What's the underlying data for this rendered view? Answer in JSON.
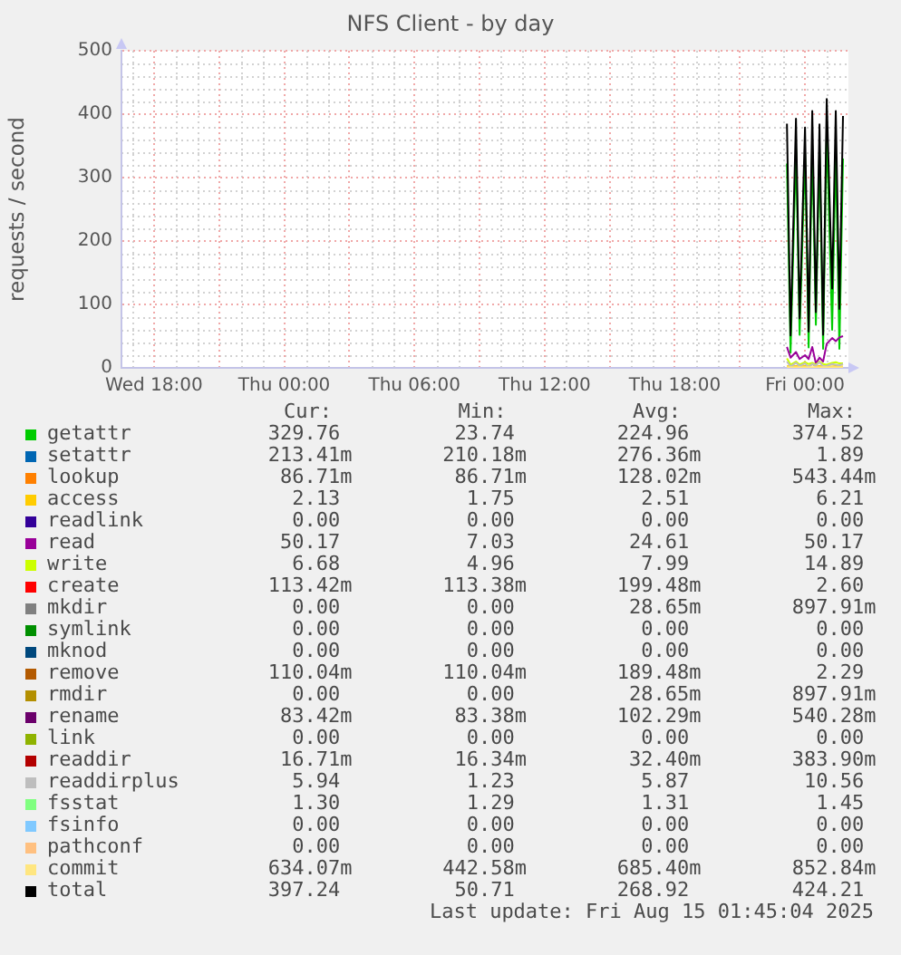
{
  "chart_data": {
    "type": "line",
    "title": "NFS Client - by day",
    "ylabel": "requests / second",
    "x": [
      "2025-08-14T23:10",
      "2025-08-14T23:20",
      "2025-08-14T23:35",
      "2025-08-14T23:45",
      "2025-08-15T00:00",
      "2025-08-15T00:10",
      "2025-08-15T00:20",
      "2025-08-15T00:30",
      "2025-08-15T00:40",
      "2025-08-15T00:50",
      "2025-08-15T01:00",
      "2025-08-15T01:15",
      "2025-08-15T01:25",
      "2025-08-15T01:35",
      "2025-08-15T01:45"
    ],
    "xlim": [
      "2025-08-13T16:30",
      "2025-08-15T02:00"
    ],
    "xticks": [
      {
        "value": "2025-08-13T18:00",
        "label": "Wed 18:00"
      },
      {
        "value": "2025-08-13T21:00",
        "label": null
      },
      {
        "value": "2025-08-14T00:00",
        "label": "Thu 00:00"
      },
      {
        "value": "2025-08-14T03:00",
        "label": null
      },
      {
        "value": "2025-08-14T06:00",
        "label": "Thu 06:00"
      },
      {
        "value": "2025-08-14T09:00",
        "label": null
      },
      {
        "value": "2025-08-14T12:00",
        "label": "Thu 12:00"
      },
      {
        "value": "2025-08-14T15:00",
        "label": null
      },
      {
        "value": "2025-08-14T18:00",
        "label": "Thu 18:00"
      },
      {
        "value": "2025-08-14T21:00",
        "label": null
      },
      {
        "value": "2025-08-15T00:00",
        "label": "Fri 00:00"
      }
    ],
    "ylim": [
      0,
      500
    ],
    "yticks": [
      0,
      100,
      200,
      300,
      400,
      500
    ],
    "grid": true,
    "legend": "bottom",
    "series": [
      {
        "name": "getattr",
        "color": "#00cc00",
        "values": [
          322,
          24,
          345,
          52,
          338,
          32,
          350,
          68,
          344,
          30,
          374,
          60,
          344,
          30,
          330
        ]
      },
      {
        "name": "setattr",
        "color": "#0066b3",
        "values": [
          null,
          null,
          null,
          null,
          null,
          null,
          null,
          null,
          null,
          null,
          null,
          null,
          null,
          null,
          null
        ]
      },
      {
        "name": "lookup",
        "color": "#ff8000",
        "values": [
          null,
          null,
          null,
          null,
          null,
          null,
          null,
          null,
          null,
          null,
          null,
          null,
          null,
          null,
          null
        ]
      },
      {
        "name": "access",
        "color": "#ffcc00",
        "values": [
          3,
          2,
          3,
          2,
          3,
          2,
          6,
          2,
          3,
          2,
          2,
          2,
          3,
          2,
          2
        ]
      },
      {
        "name": "readlink",
        "color": "#330099",
        "values": [
          null,
          null,
          null,
          null,
          null,
          null,
          null,
          null,
          null,
          null,
          null,
          null,
          null,
          null,
          null
        ]
      },
      {
        "name": "read",
        "color": "#990099",
        "values": [
          33,
          16,
          25,
          14,
          20,
          14,
          33,
          7,
          16,
          10,
          38,
          47,
          42,
          48,
          50
        ]
      },
      {
        "name": "write",
        "color": "#ccff00",
        "values": [
          15,
          5,
          10,
          5,
          9,
          6,
          8,
          5,
          10,
          6,
          5,
          8,
          9,
          7,
          7
        ]
      },
      {
        "name": "create",
        "color": "#ff0000",
        "values": [
          null,
          null,
          null,
          null,
          null,
          null,
          null,
          null,
          null,
          null,
          null,
          null,
          null,
          null,
          null
        ]
      },
      {
        "name": "mkdir",
        "color": "#808080",
        "values": [
          null,
          null,
          null,
          null,
          null,
          null,
          null,
          null,
          null,
          null,
          null,
          null,
          null,
          null,
          null
        ]
      },
      {
        "name": "symlink",
        "color": "#008f00",
        "values": [
          null,
          null,
          null,
          null,
          null,
          null,
          null,
          null,
          null,
          null,
          null,
          null,
          null,
          null,
          null
        ]
      },
      {
        "name": "mknod",
        "color": "#00487d",
        "values": [
          null,
          null,
          null,
          null,
          null,
          null,
          null,
          null,
          null,
          null,
          null,
          null,
          null,
          null,
          null
        ]
      },
      {
        "name": "remove",
        "color": "#b35a00",
        "values": [
          null,
          null,
          null,
          null,
          null,
          null,
          null,
          null,
          null,
          null,
          null,
          null,
          null,
          null,
          null
        ]
      },
      {
        "name": "rmdir",
        "color": "#b38f00",
        "values": [
          null,
          null,
          null,
          null,
          null,
          null,
          null,
          null,
          null,
          null,
          null,
          null,
          null,
          null,
          null
        ]
      },
      {
        "name": "rename",
        "color": "#6b006b",
        "values": [
          null,
          null,
          null,
          null,
          null,
          null,
          null,
          null,
          null,
          null,
          null,
          null,
          null,
          null,
          null
        ]
      },
      {
        "name": "link",
        "color": "#8fb300",
        "values": [
          null,
          null,
          null,
          null,
          null,
          null,
          null,
          null,
          null,
          null,
          null,
          null,
          null,
          null,
          null
        ]
      },
      {
        "name": "readdir",
        "color": "#b30000",
        "values": [
          null,
          null,
          null,
          null,
          null,
          null,
          null,
          null,
          null,
          null,
          null,
          null,
          null,
          null,
          null
        ]
      },
      {
        "name": "readdirplus",
        "color": "#bebebe",
        "values": [
          10,
          2,
          8,
          3,
          7,
          1,
          6,
          4,
          9,
          2,
          3,
          6,
          5,
          4,
          6
        ]
      },
      {
        "name": "fsstat",
        "color": "#80ff80",
        "values": [
          null,
          null,
          null,
          null,
          null,
          null,
          null,
          null,
          null,
          null,
          null,
          null,
          null,
          null,
          null
        ]
      },
      {
        "name": "fsinfo",
        "color": "#80c9ff",
        "values": [
          null,
          null,
          null,
          null,
          null,
          null,
          null,
          null,
          null,
          null,
          null,
          null,
          null,
          null,
          null
        ]
      },
      {
        "name": "pathconf",
        "color": "#ffc080",
        "values": [
          null,
          null,
          null,
          null,
          null,
          null,
          null,
          null,
          null,
          null,
          null,
          null,
          null,
          null,
          null
        ]
      },
      {
        "name": "commit",
        "color": "#ffe680",
        "values": [
          1,
          1,
          1,
          1,
          1,
          1,
          1,
          1,
          1,
          1,
          1,
          1,
          1,
          1,
          1
        ]
      },
      {
        "name": "total",
        "color": "#000000",
        "values": [
          385,
          51,
          393,
          78,
          379,
          57,
          405,
          88,
          384,
          52,
          424,
          125,
          405,
          93,
          397
        ]
      }
    ],
    "annotations": [
      "Cur:",
      "Min:",
      "Avg:",
      "Max:",
      "329.76",
      "23.74",
      "224.96",
      "374.52",
      "213.41m",
      "210.18m",
      "276.36m",
      "1.89",
      "86.71m",
      "86.71m",
      "128.02m",
      "543.44m",
      "2.13",
      "1.75",
      "2.51",
      "6.21",
      "0.00",
      "0.00",
      "0.00",
      "0.00",
      "50.17",
      "7.03",
      "24.61",
      "50.17",
      "6.68",
      "4.96",
      "7.99",
      "14.89",
      "113.42m",
      "113.38m",
      "199.48m",
      "2.60",
      "0.00",
      "0.00",
      "28.65m",
      "897.91m",
      "0.00",
      "0.00",
      "0.00",
      "0.00",
      "0.00",
      "0.00",
      "0.00",
      "0.00",
      "110.04m",
      "110.04m",
      "189.48m",
      "2.29",
      "0.00",
      "0.00",
      "28.65m",
      "897.91m",
      "83.42m",
      "83.38m",
      "102.29m",
      "540.28m",
      "0.00",
      "0.00",
      "0.00",
      "0.00",
      "16.71m",
      "16.34m",
      "32.40m",
      "383.90m",
      "5.94",
      "1.23",
      "5.87",
      "10.56",
      "1.30",
      "1.29",
      "1.31",
      "1.45",
      "0.00",
      "0.00",
      "0.00",
      "0.00",
      "0.00",
      "0.00",
      "0.00",
      "0.00",
      "634.07m",
      "442.58m",
      "685.40m",
      "852.84m",
      "397.24",
      "50.71",
      "268.92",
      "424.21",
      "Last update: Fri Aug 15 01:45:04 2025"
    ]
  }
}
